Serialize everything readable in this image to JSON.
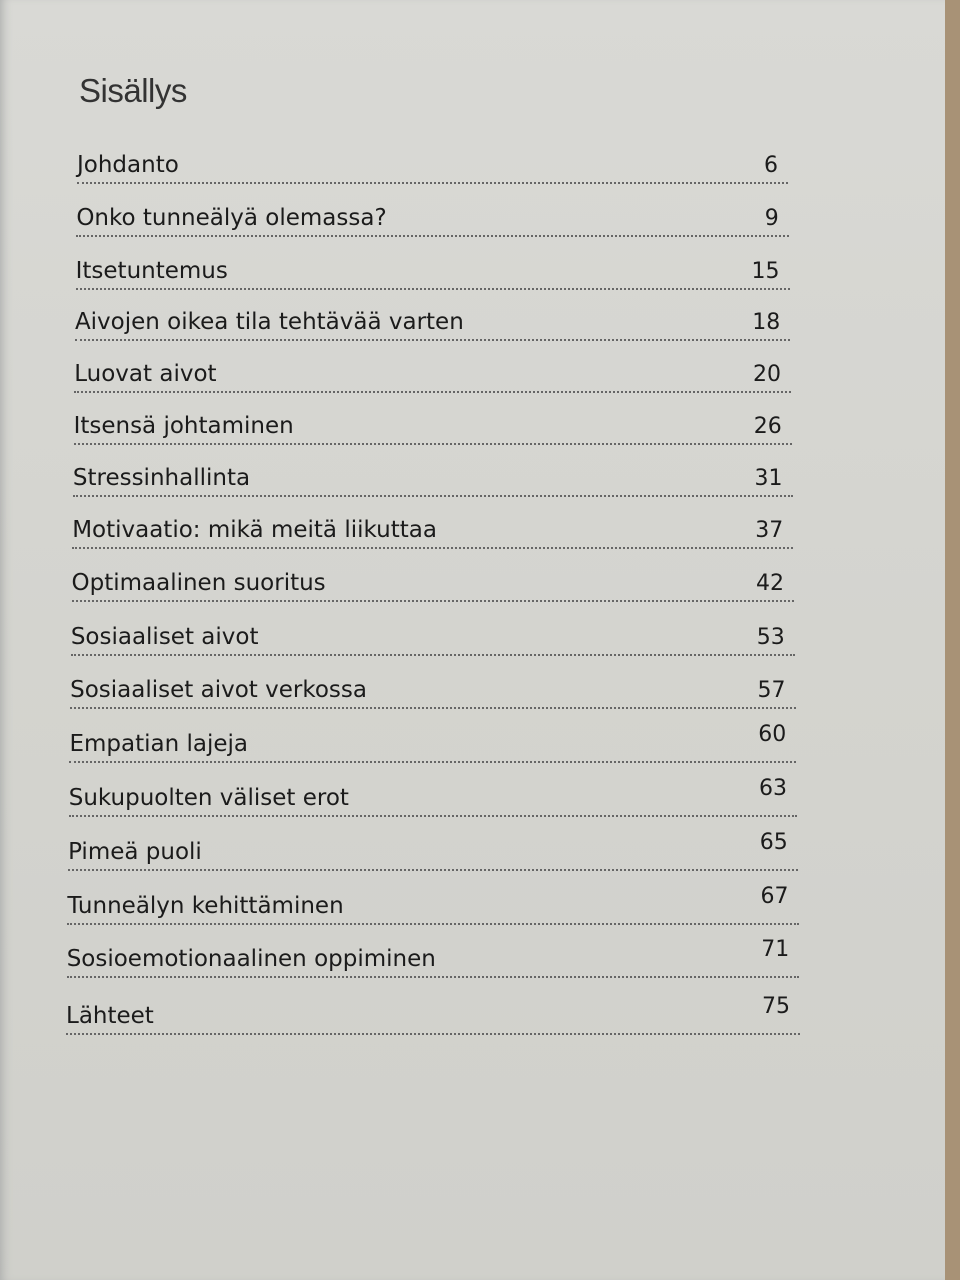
{
  "title": "Sisällys",
  "entries": [
    {
      "label": "Johdanto",
      "page": "6"
    },
    {
      "label": "Onko tunneälyä olemassa?",
      "page": "9"
    },
    {
      "label": "Itsetuntemus",
      "page": "15"
    },
    {
      "label": "Aivojen oikea tila tehtävää varten",
      "page": "18"
    },
    {
      "label": "Luovat aivot",
      "page": "20"
    },
    {
      "label": "Itsensä johtaminen",
      "page": "26"
    },
    {
      "label": "Stressinhallinta",
      "page": "31"
    },
    {
      "label": "Motivaatio: mikä meitä liikuttaa",
      "page": "37"
    },
    {
      "label": "Optimaalinen suoritus",
      "page": "42"
    },
    {
      "label": "Sosiaaliset aivot",
      "page": "53"
    },
    {
      "label": "Sosiaaliset aivot verkossa",
      "page": "57"
    },
    {
      "label": "Empatian lajeja",
      "page": "60"
    },
    {
      "label": "Sukupuolten väliset erot",
      "page": "63"
    },
    {
      "label": "Pimeä puoli",
      "page": "65"
    },
    {
      "label": "Tunneälyn kehittäminen",
      "page": "67"
    },
    {
      "label": "Sosioemotionaalinen oppiminen",
      "page": "71"
    },
    {
      "label": "Lähteet",
      "page": "75"
    }
  ]
}
